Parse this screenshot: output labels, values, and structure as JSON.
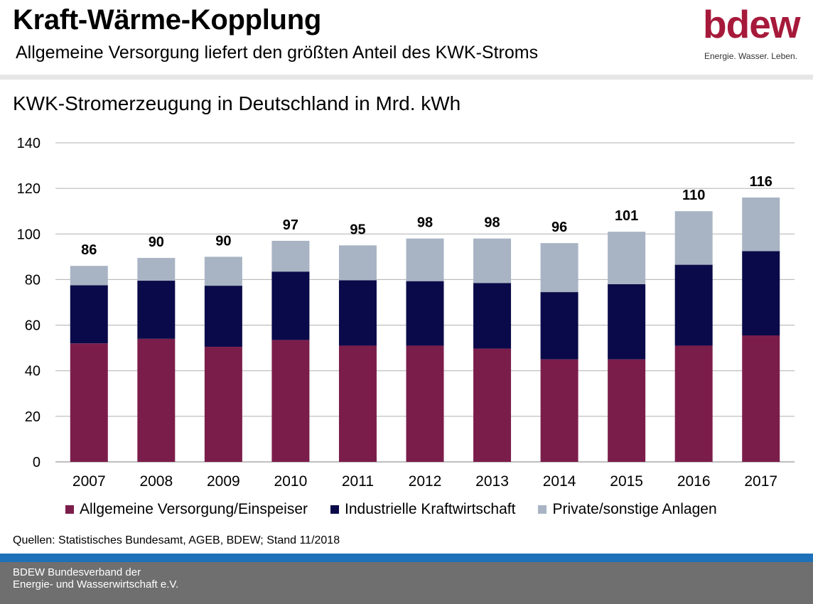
{
  "header": {
    "title": "Kraft-Wärme-Kopplung",
    "subtitle": "Allgemeine Versorgung liefert den größten Anteil des KWK-Stroms"
  },
  "logo": {
    "wordmark": "bdew",
    "tagline": "Energie. Wasser. Leben.",
    "color": "#a6193a"
  },
  "chart_data": {
    "type": "bar",
    "stacked": true,
    "title": "KWK-Stromerzeugung in Deutschland in Mrd. kWh",
    "xlabel": "",
    "ylabel": "",
    "ylim": [
      0,
      140
    ],
    "yticks": [
      0,
      20,
      40,
      60,
      80,
      100,
      120,
      140
    ],
    "grid": true,
    "legend_position": "bottom",
    "categories": [
      "2007",
      "2008",
      "2009",
      "2010",
      "2011",
      "2012",
      "2013",
      "2014",
      "2015",
      "2016",
      "2017"
    ],
    "series": [
      {
        "name": "Allgemeine Versorgung/Einspeiser",
        "color": "#7b1d4b",
        "values": [
          52,
          54,
          50.5,
          53.5,
          51,
          51,
          49.7,
          45,
          45,
          51,
          55.5
        ]
      },
      {
        "name": "Industrielle Kraftwirtschaft",
        "color": "#0a0a4a",
        "values": [
          25.5,
          25.5,
          26.8,
          30,
          28.7,
          28.3,
          28.8,
          29.5,
          33,
          35.5,
          37
        ]
      },
      {
        "name": "Private/sonstige Anlagen",
        "color": "#a8b4c4",
        "values": [
          8.5,
          10,
          12.7,
          13.5,
          15.3,
          18.7,
          19.5,
          21.5,
          23,
          23.5,
          23.5
        ]
      }
    ],
    "totals": [
      "86",
      "90",
      "90",
      "97",
      "95",
      "98",
      "98",
      "96",
      "101",
      "110",
      "116"
    ]
  },
  "source": "Quellen: Statistisches Bundesamt, AGEB, BDEW; Stand 11/2018",
  "footer": {
    "line1": "BDEW Bundesverband der",
    "line2": "Energie- und Wasserwirtschaft e.V."
  }
}
